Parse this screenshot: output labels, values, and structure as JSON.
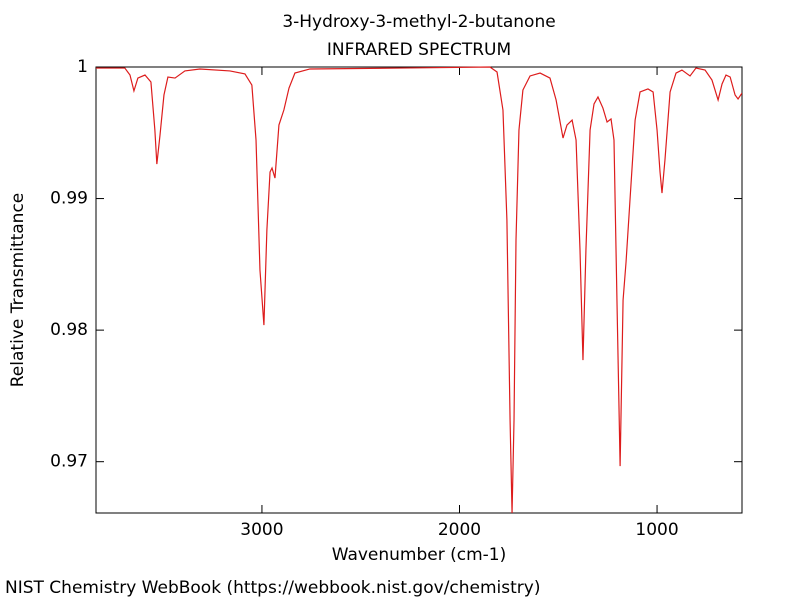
{
  "chart_data": {
    "type": "line",
    "title": "3-Hydroxy-3-methyl-2-butanone",
    "subtitle": "INFRARED SPECTRUM",
    "x_label": "Wavenumber (cm-1)",
    "y_label": "Relative Transmittance",
    "source": "NIST Chemistry WebBook (https://webbook.nist.gov/chemistry)",
    "color": "#dd1c1c",
    "xlim": [
      3840,
      570
    ],
    "ylim": [
      0.9661,
      1
    ],
    "xticks": [
      3000,
      2000,
      1000
    ],
    "yticks": [
      0.97,
      0.98,
      0.99,
      1
    ],
    "x": [
      3840,
      3694,
      3668,
      3648,
      3628,
      3592,
      3562,
      3542,
      3532,
      3516,
      3496,
      3476,
      3440,
      3390,
      3314,
      3162,
      3086,
      3051,
      3030,
      3010,
      2990,
      2975,
      2959,
      2949,
      2934,
      2914,
      2889,
      2863,
      2833,
      2757,
      2301,
      1846,
      1810,
      1780,
      1760,
      1744,
      1734,
      1724,
      1714,
      1699,
      1679,
      1643,
      1592,
      1542,
      1511,
      1476,
      1456,
      1430,
      1410,
      1390,
      1375,
      1360,
      1339,
      1319,
      1299,
      1274,
      1253,
      1233,
      1218,
      1203,
      1187,
      1172,
      1157,
      1137,
      1111,
      1086,
      1046,
      1020,
      1000,
      985,
      975,
      960,
      934,
      904,
      874,
      833,
      803,
      757,
      722,
      691,
      671,
      651,
      630,
      605,
      590,
      570
    ],
    "values": [
      0.99992,
      0.99992,
      0.99939,
      0.99818,
      0.99916,
      0.99939,
      0.99886,
      0.99521,
      0.99262,
      0.99483,
      0.99787,
      0.99924,
      0.99916,
      0.9997,
      0.99985,
      0.9997,
      0.99947,
      0.99863,
      0.99445,
      0.98456,
      0.98038,
      0.9876,
      0.99202,
      0.99232,
      0.99156,
      0.99559,
      0.99673,
      0.9984,
      0.99954,
      0.99985,
      0.99992,
      1,
      0.99962,
      0.99673,
      0.98837,
      0.97316,
      0.9661,
      0.97316,
      0.98684,
      0.99521,
      0.99825,
      0.99932,
      0.99954,
      0.99916,
      0.99749,
      0.9946,
      0.99559,
      0.99597,
      0.99445,
      0.98608,
      0.97772,
      0.98608,
      0.99521,
      0.99719,
      0.99772,
      0.99688,
      0.99582,
      0.99605,
      0.99445,
      0.98228,
      0.96966,
      0.98228,
      0.98517,
      0.98989,
      0.99597,
      0.9981,
      0.99833,
      0.9981,
      0.99521,
      0.99202,
      0.99042,
      0.99293,
      0.9981,
      0.99954,
      0.99977,
      0.99932,
      0.99992,
      0.99977,
      0.99901,
      0.99749,
      0.99871,
      0.99939,
      0.99924,
      0.99787,
      0.99757,
      0.99802
    ]
  }
}
